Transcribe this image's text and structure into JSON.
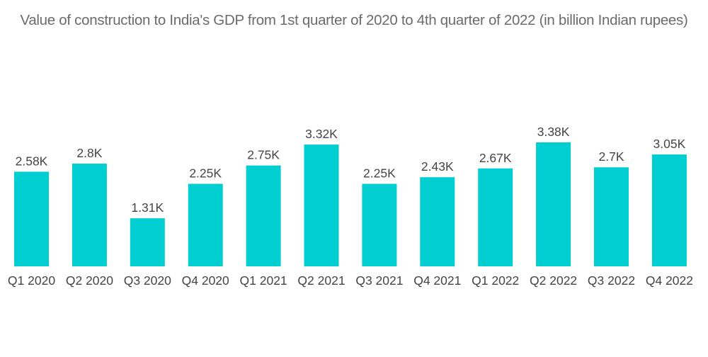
{
  "chart_data": {
    "type": "bar",
    "title": "Value of construction to India's GDP from 1st quarter of 2020 to 4th quarter of 2022 (in billion Indian rupees)",
    "xlabel": "",
    "ylabel": "",
    "categories": [
      "Q1 2020",
      "Q2 2020",
      "Q3 2020",
      "Q4 2020",
      "Q1 2021",
      "Q2 2021",
      "Q3 2021",
      "Q4 2021",
      "Q1 2022",
      "Q2 2022",
      "Q3 2022",
      "Q4 2022"
    ],
    "values": [
      2580,
      2800,
      1310,
      2250,
      2750,
      3320,
      2250,
      2430,
      2670,
      3380,
      2700,
      3050
    ],
    "data_labels": [
      "2.58K",
      "2.8K",
      "1.31K",
      "2.25K",
      "2.75K",
      "3.32K",
      "2.25K",
      "2.43K",
      "2.67K",
      "3.38K",
      "2.7K",
      "3.05K"
    ],
    "ylim": [
      0,
      3380
    ],
    "grid": false,
    "legend": "none",
    "bar_color": "#00ced1"
  }
}
